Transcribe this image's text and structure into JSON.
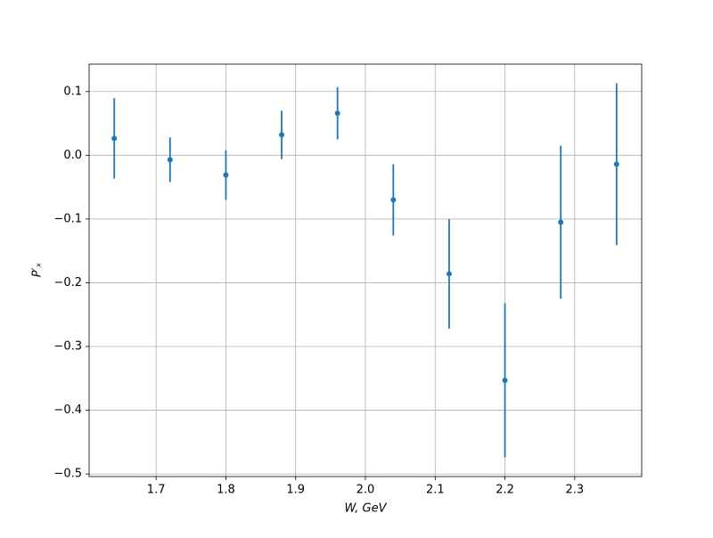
{
  "chart_data": {
    "type": "errorbar",
    "x_label": "W, GeV",
    "y_label": "P′ₓ",
    "x": [
      1.64,
      1.72,
      1.8,
      1.88,
      1.96,
      2.04,
      2.12,
      2.2,
      2.28,
      2.36
    ],
    "series": [
      {
        "color": "#1f77b4",
        "values": [
          0.0265,
          -0.007,
          -0.031,
          0.032,
          0.066,
          -0.07,
          -0.186,
          -0.353,
          -0.105,
          -0.014
        ],
        "errors": [
          0.063,
          0.035,
          0.039,
          0.038,
          0.041,
          0.056,
          0.086,
          0.121,
          0.12,
          0.127
        ]
      }
    ],
    "xlim": [
      1.604,
      2.396
    ],
    "ylim": [
      -0.504,
      0.143
    ],
    "xticks": [
      1.7,
      1.8,
      1.9,
      {
        "value": 2.0,
        "label": "2.0"
      },
      2.1,
      2.2,
      2.3
    ],
    "yticks": [
      {
        "value": 0.1,
        "label": "0.1"
      },
      {
        "value": 0.0,
        "label": "0.0"
      },
      {
        "value": -0.1,
        "label": "−0.1"
      },
      {
        "value": -0.2,
        "label": "−0.2"
      },
      {
        "value": -0.3,
        "label": "−0.3"
      },
      {
        "value": -0.4,
        "label": "−0.4"
      },
      {
        "value": -0.5,
        "label": "−0.5"
      }
    ],
    "grid": true
  }
}
